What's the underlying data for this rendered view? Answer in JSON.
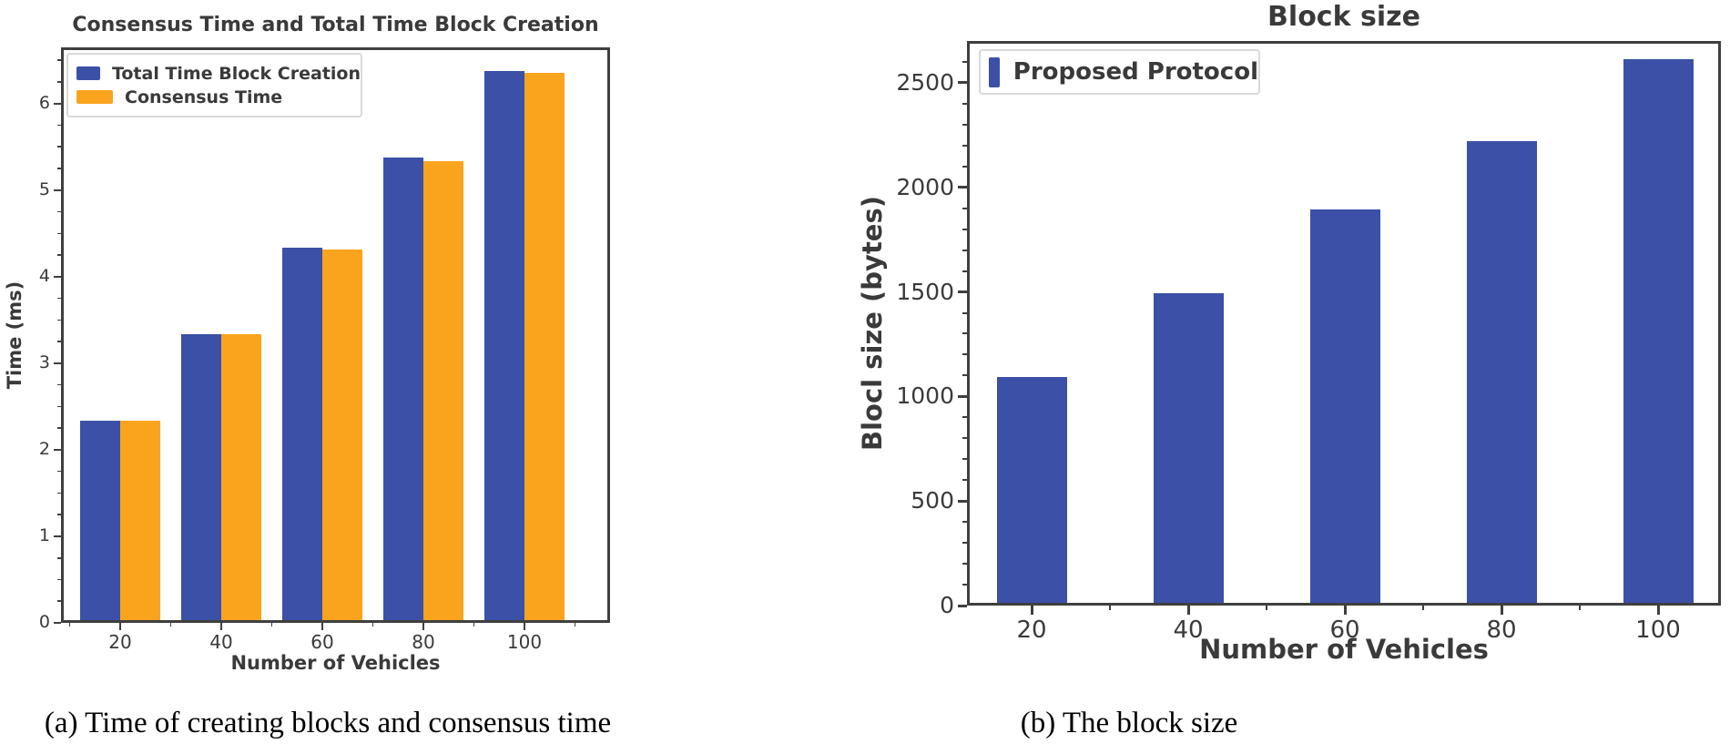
{
  "colors": {
    "bar_blue": "#3B50A6",
    "bar_orange": "#FAA41E",
    "axis": "#3F3F3F",
    "text": "#3A3A3A",
    "legend_border": "#D9D9D9",
    "background": "#FFFFFF",
    "caption_text": "#000000"
  },
  "chart_data": [
    {
      "id": "a",
      "type": "bar",
      "title": "Consensus Time and Total Time Block Creation",
      "xlabel": "Number of Vehicles",
      "ylabel": "Time (ms)",
      "categories": [
        "20",
        "40",
        "60",
        "80",
        "100"
      ],
      "series": [
        {
          "name": "Total Time Block Creation",
          "color": "#3B50A6",
          "values": [
            2.3,
            3.3,
            4.3,
            5.35,
            6.35
          ]
        },
        {
          "name": "Consensus Time",
          "color": "#FAA41E",
          "values": [
            2.3,
            3.3,
            4.28,
            5.3,
            6.32
          ]
        }
      ],
      "ylim": [
        0,
        6.65
      ],
      "yticks": [
        0,
        1,
        2,
        3,
        4,
        5,
        6
      ],
      "grid": false,
      "legend_position": "upper left",
      "caption": "(a) Time of creating blocks and consensus time"
    },
    {
      "id": "b",
      "type": "bar",
      "title": "Block size",
      "xlabel": "Number of Vehicles",
      "ylabel": "Blocl size (bytes)",
      "categories": [
        "20",
        "40",
        "60",
        "80",
        "100"
      ],
      "series": [
        {
          "name": "Proposed Protocol",
          "color": "#3B50A6",
          "values": [
            1080,
            1480,
            1880,
            2210,
            2600
          ]
        }
      ],
      "ylim": [
        0,
        2700
      ],
      "yticks": [
        0,
        500,
        1000,
        1500,
        2000,
        2500
      ],
      "grid": false,
      "legend_position": "upper left",
      "caption": "(b) The block size"
    }
  ]
}
